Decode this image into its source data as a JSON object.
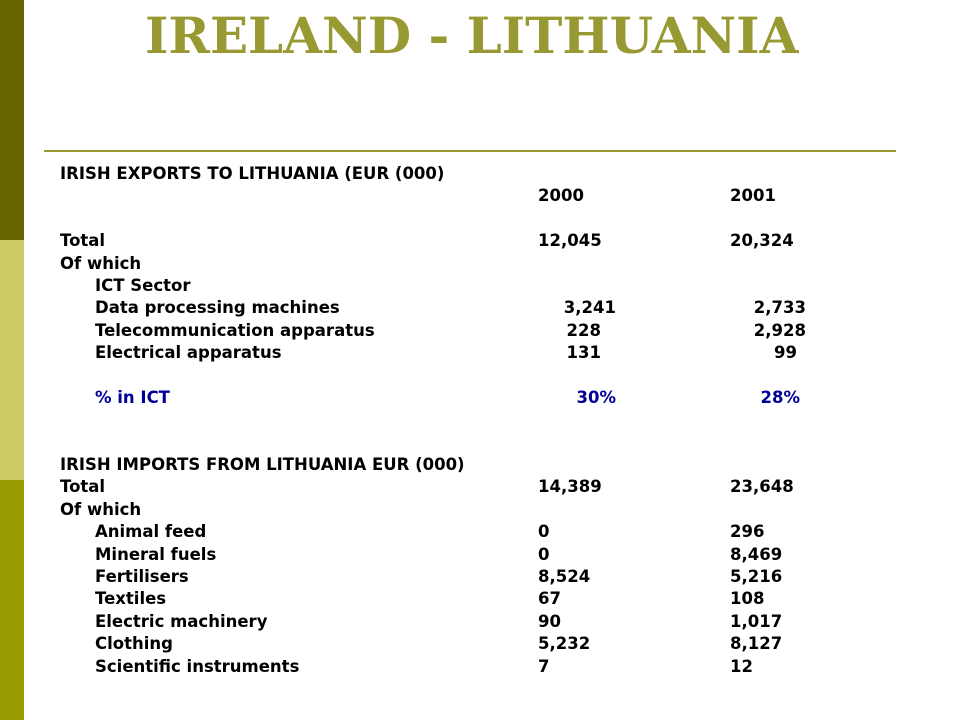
{
  "slide": {
    "title": "IRELAND - LITHUANIA",
    "colors": {
      "title": "#999933",
      "rule": "#999933",
      "bar_top": "#666600",
      "bar_mid": "#cccc66",
      "bar_bottom": "#999900",
      "ict_highlight": "#000099"
    }
  },
  "exports": {
    "heading": "IRISH EXPORTS TO LITHUANIA (EUR (000)",
    "year_2000": "2000",
    "year_2001": "2001",
    "total_label": "Total",
    "total_2000": "12,045",
    "total_2001": "20,324",
    "of_which": "Of which",
    "ict_sector": "ICT Sector",
    "items": [
      {
        "label": "Data processing machines",
        "v2000": "3,241",
        "v2001": "2,733"
      },
      {
        "label": "Telecommunication apparatus",
        "v2000": "228",
        "v2001": "2,928"
      },
      {
        "label": "Electrical apparatus",
        "v2000": "131",
        "v2001": "99"
      }
    ],
    "ict_share_label": "% in ICT",
    "ict_share_2000": "30%",
    "ict_share_2001": "28%"
  },
  "imports": {
    "heading": "IRISH IMPORTS FROM LITHUANIA EUR (000)",
    "total_label": "Total",
    "total_2000": "14,389",
    "total_2001": "23,648",
    "of_which": "Of which",
    "items": [
      {
        "label": "Animal feed",
        "v2000": "0",
        "v2001": "296"
      },
      {
        "label": "Mineral fuels",
        "v2000": "0",
        "v2001": "8,469"
      },
      {
        "label": "Fertilisers",
        "v2000": "8,524",
        "v2001": "5,216"
      },
      {
        "label": "Textiles",
        "v2000": "67",
        "v2001": "108"
      },
      {
        "label": "Electric machinery",
        "v2000": "90",
        "v2001": "1,017"
      },
      {
        "label": "Clothing",
        "v2000": "5,232",
        "v2001": "8,127"
      },
      {
        "label": "Scientific instruments",
        "v2000": "7",
        "v2001": "12"
      }
    ]
  }
}
